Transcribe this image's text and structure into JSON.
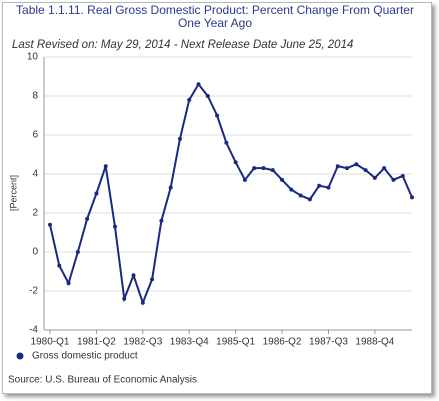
{
  "chart_data": {
    "type": "line",
    "title": "Table 1.1.11. Real Gross Domestic Product: Percent Change From Quarter One Year Ago",
    "subtitle": "Last Revised on: May 29, 2014 - Next Release Date June 25, 2014",
    "y_label": "[Percent]",
    "source": "Source: U.S. Bureau of Economic Analysis",
    "categories": [
      "1980-Q1",
      null,
      null,
      null,
      null,
      "1981-Q2",
      null,
      null,
      null,
      null,
      "1982-Q3",
      null,
      null,
      null,
      null,
      "1983-Q4",
      null,
      null,
      null,
      null,
      "1985-Q1",
      null,
      null,
      null,
      null,
      "1986-Q2",
      null,
      null,
      null,
      null,
      "1987-Q3",
      null,
      null,
      null,
      null,
      "1988-Q4",
      null,
      null,
      null,
      null
    ],
    "series": [
      {
        "name": "Gross domestic product",
        "color": "#1a2a80",
        "values": [
          1.4,
          -0.7,
          -1.6,
          0.0,
          1.7,
          3.0,
          4.4,
          1.3,
          -2.4,
          -1.2,
          -2.6,
          -1.4,
          1.6,
          3.3,
          5.8,
          7.8,
          8.6,
          8.0,
          7.0,
          5.6,
          4.6,
          3.7,
          4.3,
          4.3,
          4.2,
          3.7,
          3.2,
          2.9,
          2.7,
          3.4,
          3.3,
          4.4,
          4.3,
          4.5,
          4.2,
          3.8,
          4.3,
          3.7,
          3.9,
          2.8
        ]
      }
    ],
    "ylim": [
      -4,
      10
    ],
    "yticks": [
      -4,
      -2,
      0,
      2,
      4,
      6,
      8,
      10
    ],
    "grid": true,
    "legend": "bottom-left"
  }
}
